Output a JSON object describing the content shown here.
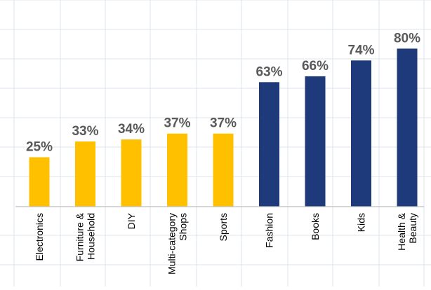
{
  "chart_data": {
    "type": "bar",
    "categories": [
      [
        "Electronics"
      ],
      [
        "Furniture &",
        "Household"
      ],
      [
        "DIY"
      ],
      [
        "Multi-category",
        "Shops"
      ],
      [
        "Sports"
      ],
      [
        "Fashion"
      ],
      [
        "Books"
      ],
      [
        "Kids"
      ],
      [
        "Health &",
        "Beauty"
      ]
    ],
    "values": [
      25,
      33,
      34,
      37,
      37,
      63,
      66,
      74,
      80
    ],
    "data_labels": [
      "25%",
      "33%",
      "34%",
      "37%",
      "37%",
      "63%",
      "66%",
      "74%",
      "80%"
    ],
    "bar_colors": [
      "#FFC000",
      "#FFC000",
      "#FFC000",
      "#FFC000",
      "#FFC000",
      "#1F3A7A",
      "#1F3A7A",
      "#1F3A7A",
      "#1F3A7A"
    ],
    "ylim": [
      0,
      100
    ],
    "grid": true,
    "legend": "none",
    "colors": {
      "grid": "#DDE3EE",
      "axis": "#BFBFBF",
      "label": "#595959",
      "category": "#000000"
    }
  }
}
